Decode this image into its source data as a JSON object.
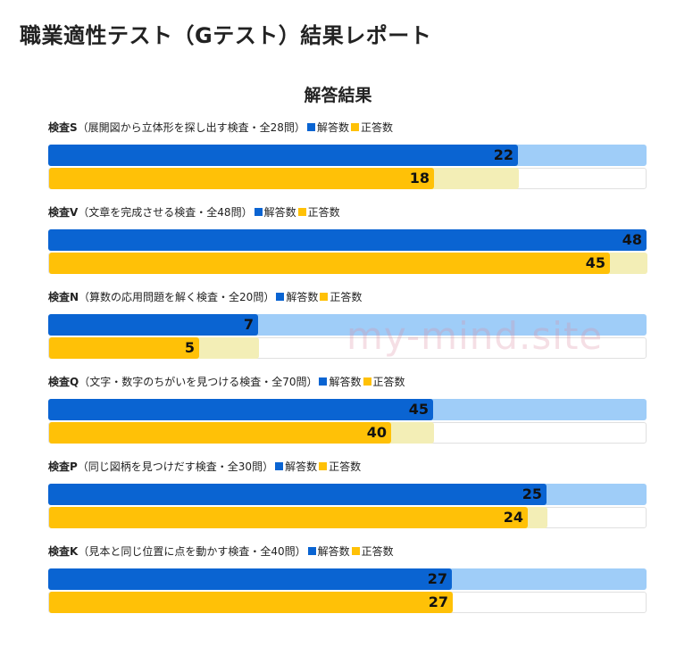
{
  "page_title": "職業適性テスト（Gテスト）結果レポート",
  "section_title": "解答結果",
  "legend": {
    "answered": "解答数",
    "correct": "正答数"
  },
  "colors": {
    "answered": "#0a64d2",
    "answered_track": "#9fcdf8",
    "correct": "#ffc107",
    "correct_track": "#f3eeb6"
  },
  "watermark": "my-mind.site",
  "chart_data": {
    "type": "bar",
    "orientation": "horizontal",
    "series_names": [
      "解答数",
      "正答数"
    ],
    "tests": [
      {
        "name": "検査S",
        "desc": "（展開図から立体形を探し出す検査・全28問）",
        "total": 28,
        "answered": 22,
        "correct": 18
      },
      {
        "name": "検査V",
        "desc": "（文章を完成させる検査・全48問）",
        "total": 48,
        "answered": 48,
        "correct": 45
      },
      {
        "name": "検査N",
        "desc": "（算数の応用問題を解く検査・全20問）",
        "total": 20,
        "answered": 7,
        "correct": 5
      },
      {
        "name": "検査Q",
        "desc": "（文字・数字のちがいを見つける検査・全70問）",
        "total": 70,
        "answered": 45,
        "correct": 40
      },
      {
        "name": "検査P",
        "desc": "（同じ図柄を見つけだす検査・全30問）",
        "total": 30,
        "answered": 25,
        "correct": 24
      },
      {
        "name": "検査K",
        "desc": "（見本と同じ位置に点を動かす検査・全40問）",
        "total": 40,
        "answered": 27,
        "correct": 27
      }
    ]
  }
}
